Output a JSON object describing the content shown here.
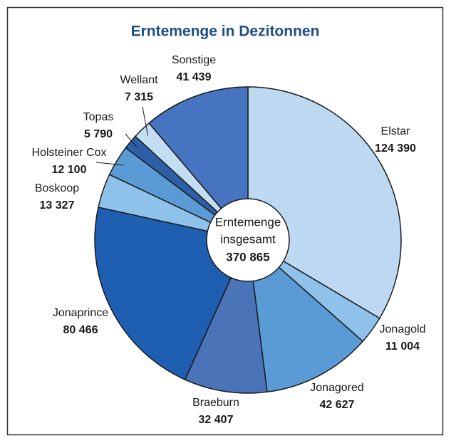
{
  "chart_data": {
    "type": "pie",
    "title": "Erntemenge in Dezitonnen",
    "categories": [
      "Elstar",
      "Jonagold",
      "Jonagored",
      "Braeburn",
      "Jonaprince",
      "Boskoop",
      "Holsteiner Cox",
      "Topas",
      "Wellant",
      "Sonstige"
    ],
    "values": [
      124390,
      11004,
      42627,
      32407,
      80466,
      13327,
      12100,
      5790,
      7315,
      41439
    ],
    "value_labels": [
      "124 390",
      "11 004",
      "42 627",
      "32 407",
      "80 466",
      "13 327",
      "12 100",
      "5 790",
      "7 315",
      "41 439"
    ],
    "colors": [
      "#bdd9f1",
      "#8ec2ea",
      "#5a9bd5",
      "#4a73b8",
      "#1f5fb2",
      "#8ec2ea",
      "#5a9bd5",
      "#2d5fa8",
      "#c3def3",
      "#4674c0"
    ],
    "center": {
      "line1": "Erntemenge",
      "line2": "insgesamt",
      "total": {
        "value": 370865,
        "label": "370 865"
      }
    }
  }
}
